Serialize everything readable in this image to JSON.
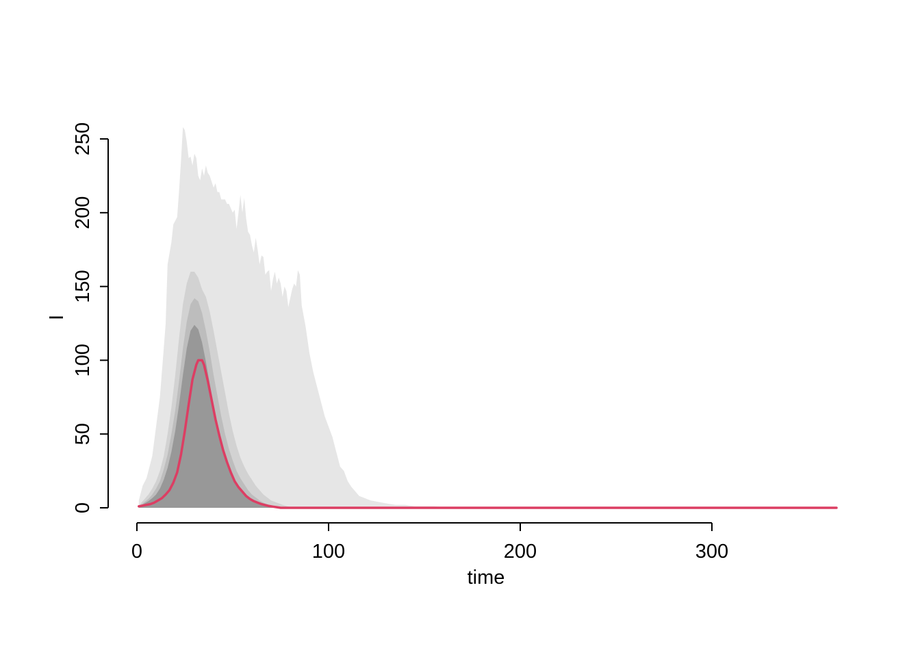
{
  "chart_data": {
    "type": "area",
    "title": "",
    "xlabel": "time",
    "ylabel": "I",
    "xlim": [
      0,
      365
    ],
    "ylim": [
      0,
      258
    ],
    "x_ticks": [
      "0",
      "100",
      "200",
      "300"
    ],
    "y_ticks": [
      "0",
      "50",
      "100",
      "150",
      "200",
      "250"
    ],
    "grid": false,
    "legend": "none",
    "colors": {
      "band_outer": "#e6e6e6",
      "band_mid": "#d2d2d2",
      "band_inner": "#bdbdbd",
      "band_core": "#989898",
      "line": "#dc3e63"
    },
    "bands": [
      {
        "fill_key": "band_outer",
        "points": [
          [
            1,
            0
          ],
          [
            1,
            5
          ],
          [
            3,
            15
          ],
          [
            5,
            20
          ],
          [
            8,
            35
          ],
          [
            10,
            55
          ],
          [
            12,
            75
          ],
          [
            14,
            108
          ],
          [
            15,
            125
          ],
          [
            16,
            165
          ],
          [
            18,
            180
          ],
          [
            19,
            192
          ],
          [
            21,
            197
          ],
          [
            22,
            215
          ],
          [
            23,
            235
          ],
          [
            24,
            258
          ],
          [
            25,
            256
          ],
          [
            26,
            248
          ],
          [
            27,
            237
          ],
          [
            28,
            238
          ],
          [
            29,
            232
          ],
          [
            30,
            240
          ],
          [
            31,
            237
          ],
          [
            32,
            225
          ],
          [
            33,
            222
          ],
          [
            34,
            230
          ],
          [
            35,
            225
          ],
          [
            36,
            232
          ],
          [
            37,
            227
          ],
          [
            38,
            225
          ],
          [
            40,
            217
          ],
          [
            41,
            220
          ],
          [
            42,
            214
          ],
          [
            43,
            214
          ],
          [
            44,
            209
          ],
          [
            46,
            209
          ],
          [
            47,
            206
          ],
          [
            48,
            206
          ],
          [
            50,
            200
          ],
          [
            51,
            202
          ],
          [
            52,
            189
          ],
          [
            53,
            200
          ],
          [
            54,
            212
          ],
          [
            55,
            200
          ],
          [
            56,
            210
          ],
          [
            57,
            196
          ],
          [
            58,
            187
          ],
          [
            59,
            185
          ],
          [
            60,
            178
          ],
          [
            61,
            173
          ],
          [
            62,
            183
          ],
          [
            63,
            175
          ],
          [
            64,
            165
          ],
          [
            65,
            171
          ],
          [
            66,
            170
          ],
          [
            67,
            158
          ],
          [
            68,
            160
          ],
          [
            69,
            161
          ],
          [
            70,
            147
          ],
          [
            71,
            155
          ],
          [
            72,
            160
          ],
          [
            73,
            152
          ],
          [
            74,
            156
          ],
          [
            75,
            152
          ],
          [
            76,
            143
          ],
          [
            77,
            150
          ],
          [
            78,
            147
          ],
          [
            79,
            136
          ],
          [
            80,
            142
          ],
          [
            81,
            148
          ],
          [
            82,
            152
          ],
          [
            83,
            150
          ],
          [
            84,
            161
          ],
          [
            85,
            158
          ],
          [
            86,
            137
          ],
          [
            88,
            123
          ],
          [
            90,
            105
          ],
          [
            92,
            92
          ],
          [
            94,
            82
          ],
          [
            96,
            72
          ],
          [
            98,
            62
          ],
          [
            100,
            55
          ],
          [
            102,
            48
          ],
          [
            104,
            38
          ],
          [
            106,
            28
          ],
          [
            108,
            25
          ],
          [
            110,
            18
          ],
          [
            112,
            14
          ],
          [
            114,
            11
          ],
          [
            116,
            8
          ],
          [
            118,
            7
          ],
          [
            120,
            6
          ],
          [
            122,
            5
          ],
          [
            126,
            4
          ],
          [
            130,
            3
          ],
          [
            135,
            2
          ],
          [
            140,
            2
          ],
          [
            145,
            1
          ],
          [
            150,
            1
          ],
          [
            155,
            1
          ],
          [
            160,
            0.6
          ],
          [
            170,
            0.3
          ],
          [
            180,
            0.1
          ],
          [
            185,
            0
          ]
        ]
      },
      {
        "fill_key": "band_mid",
        "points": [
          [
            1,
            0
          ],
          [
            2,
            3
          ],
          [
            4,
            6
          ],
          [
            6,
            9
          ],
          [
            8,
            13
          ],
          [
            10,
            18
          ],
          [
            12,
            25
          ],
          [
            14,
            35
          ],
          [
            16,
            50
          ],
          [
            18,
            68
          ],
          [
            20,
            90
          ],
          [
            22,
            115
          ],
          [
            24,
            138
          ],
          [
            26,
            152
          ],
          [
            28,
            160
          ],
          [
            30,
            160
          ],
          [
            32,
            156
          ],
          [
            34,
            148
          ],
          [
            36,
            143
          ],
          [
            38,
            133
          ],
          [
            40,
            120
          ],
          [
            42,
            106
          ],
          [
            44,
            92
          ],
          [
            46,
            78
          ],
          [
            48,
            64
          ],
          [
            50,
            52
          ],
          [
            52,
            42
          ],
          [
            54,
            34
          ],
          [
            56,
            28
          ],
          [
            58,
            23
          ],
          [
            60,
            19
          ],
          [
            62,
            15
          ],
          [
            64,
            12
          ],
          [
            66,
            9
          ],
          [
            68,
            7
          ],
          [
            70,
            5
          ],
          [
            72,
            4
          ],
          [
            74,
            3
          ],
          [
            76,
            2
          ],
          [
            78,
            1.2
          ],
          [
            80,
            0.6
          ],
          [
            82,
            0.2
          ],
          [
            84,
            0
          ]
        ]
      },
      {
        "fill_key": "band_inner",
        "points": [
          [
            1,
            0
          ],
          [
            2,
            2
          ],
          [
            4,
            4
          ],
          [
            6,
            6
          ],
          [
            8,
            9
          ],
          [
            10,
            13
          ],
          [
            12,
            18
          ],
          [
            14,
            26
          ],
          [
            16,
            36
          ],
          [
            18,
            50
          ],
          [
            20,
            66
          ],
          [
            22,
            86
          ],
          [
            24,
            108
          ],
          [
            26,
            126
          ],
          [
            28,
            138
          ],
          [
            30,
            142
          ],
          [
            32,
            140
          ],
          [
            34,
            132
          ],
          [
            36,
            120
          ],
          [
            38,
            106
          ],
          [
            40,
            90
          ],
          [
            42,
            76
          ],
          [
            44,
            62
          ],
          [
            46,
            50
          ],
          [
            48,
            40
          ],
          [
            50,
            32
          ],
          [
            52,
            25
          ],
          [
            54,
            20
          ],
          [
            56,
            16
          ],
          [
            58,
            12
          ],
          [
            60,
            9
          ],
          [
            62,
            7
          ],
          [
            64,
            5
          ],
          [
            66,
            3.5
          ],
          [
            68,
            2.5
          ],
          [
            70,
            1.5
          ],
          [
            72,
            0.8
          ],
          [
            74,
            0.3
          ],
          [
            76,
            0
          ]
        ]
      },
      {
        "fill_key": "band_core",
        "points": [
          [
            1,
            0
          ],
          [
            2,
            1.5
          ],
          [
            4,
            3
          ],
          [
            6,
            4.5
          ],
          [
            8,
            6.5
          ],
          [
            10,
            9
          ],
          [
            12,
            13
          ],
          [
            14,
            19
          ],
          [
            16,
            27
          ],
          [
            18,
            38
          ],
          [
            20,
            52
          ],
          [
            22,
            70
          ],
          [
            24,
            90
          ],
          [
            26,
            108
          ],
          [
            28,
            120
          ],
          [
            30,
            124
          ],
          [
            32,
            121
          ],
          [
            34,
            112
          ],
          [
            36,
            99
          ],
          [
            38,
            84
          ],
          [
            40,
            70
          ],
          [
            42,
            57
          ],
          [
            44,
            46
          ],
          [
            46,
            36
          ],
          [
            48,
            28
          ],
          [
            50,
            21
          ],
          [
            52,
            16
          ],
          [
            54,
            12
          ],
          [
            56,
            9
          ],
          [
            58,
            7
          ],
          [
            60,
            5
          ],
          [
            62,
            3.5
          ],
          [
            64,
            2.5
          ],
          [
            66,
            1.6
          ],
          [
            68,
            1
          ],
          [
            70,
            0.5
          ],
          [
            72,
            0.2
          ],
          [
            74,
            0
          ]
        ]
      }
    ],
    "series": [
      {
        "color_key": "line",
        "points": [
          [
            1,
            1
          ],
          [
            3,
            1.5
          ],
          [
            5,
            2
          ],
          [
            7,
            2.5
          ],
          [
            9,
            3.5
          ],
          [
            11,
            5
          ],
          [
            13,
            6.5
          ],
          [
            15,
            9
          ],
          [
            17,
            12
          ],
          [
            19,
            17
          ],
          [
            21,
            24
          ],
          [
            23,
            36
          ],
          [
            25,
            52
          ],
          [
            27,
            70
          ],
          [
            29,
            87
          ],
          [
            31,
            97
          ],
          [
            32,
            100
          ],
          [
            34,
            100
          ],
          [
            35,
            97
          ],
          [
            37,
            86
          ],
          [
            39,
            73
          ],
          [
            41,
            60
          ],
          [
            43,
            49
          ],
          [
            45,
            39
          ],
          [
            47,
            31
          ],
          [
            49,
            24
          ],
          [
            51,
            18
          ],
          [
            53,
            14
          ],
          [
            55,
            11
          ],
          [
            57,
            8
          ],
          [
            59,
            6
          ],
          [
            61,
            4.5
          ],
          [
            63,
            3.5
          ],
          [
            65,
            2.5
          ],
          [
            67,
            1.8
          ],
          [
            69,
            1.2
          ],
          [
            71,
            0.8
          ],
          [
            73,
            0.4
          ],
          [
            75,
            0
          ],
          [
            365,
            0
          ]
        ]
      }
    ]
  }
}
